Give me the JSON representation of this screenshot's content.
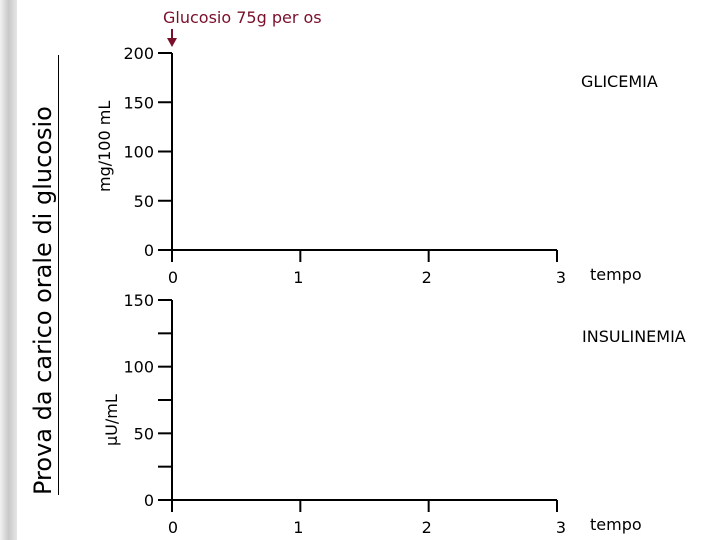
{
  "slide_title": "Prova da carico orale di glucosio",
  "annotation": "Glucosio 75g per os",
  "colors": {
    "annotation": "#7a0f2b",
    "axis": "#000000"
  },
  "chart_data": [
    {
      "type": "line",
      "title": "GLICEMIA",
      "ylabel": "mg/100 mL",
      "xlabel": "tempo",
      "x_ticks": [
        "0",
        "1",
        "2",
        "3"
      ],
      "y_ticks": [
        "0",
        "50",
        "100",
        "150",
        "200"
      ],
      "ylim": [
        0,
        200
      ],
      "xlim": [
        0,
        3
      ],
      "grid": false,
      "series": []
    },
    {
      "type": "line",
      "title": "INSULINEMIA",
      "ylabel": "µU/mL",
      "xlabel": "tempo",
      "x_ticks": [
        "0",
        "1",
        "2",
        "3"
      ],
      "y_ticks": [
        "0",
        "50",
        "100",
        "150"
      ],
      "ylim": [
        0,
        150
      ],
      "xlim": [
        0,
        3
      ],
      "grid": false,
      "series": []
    }
  ]
}
